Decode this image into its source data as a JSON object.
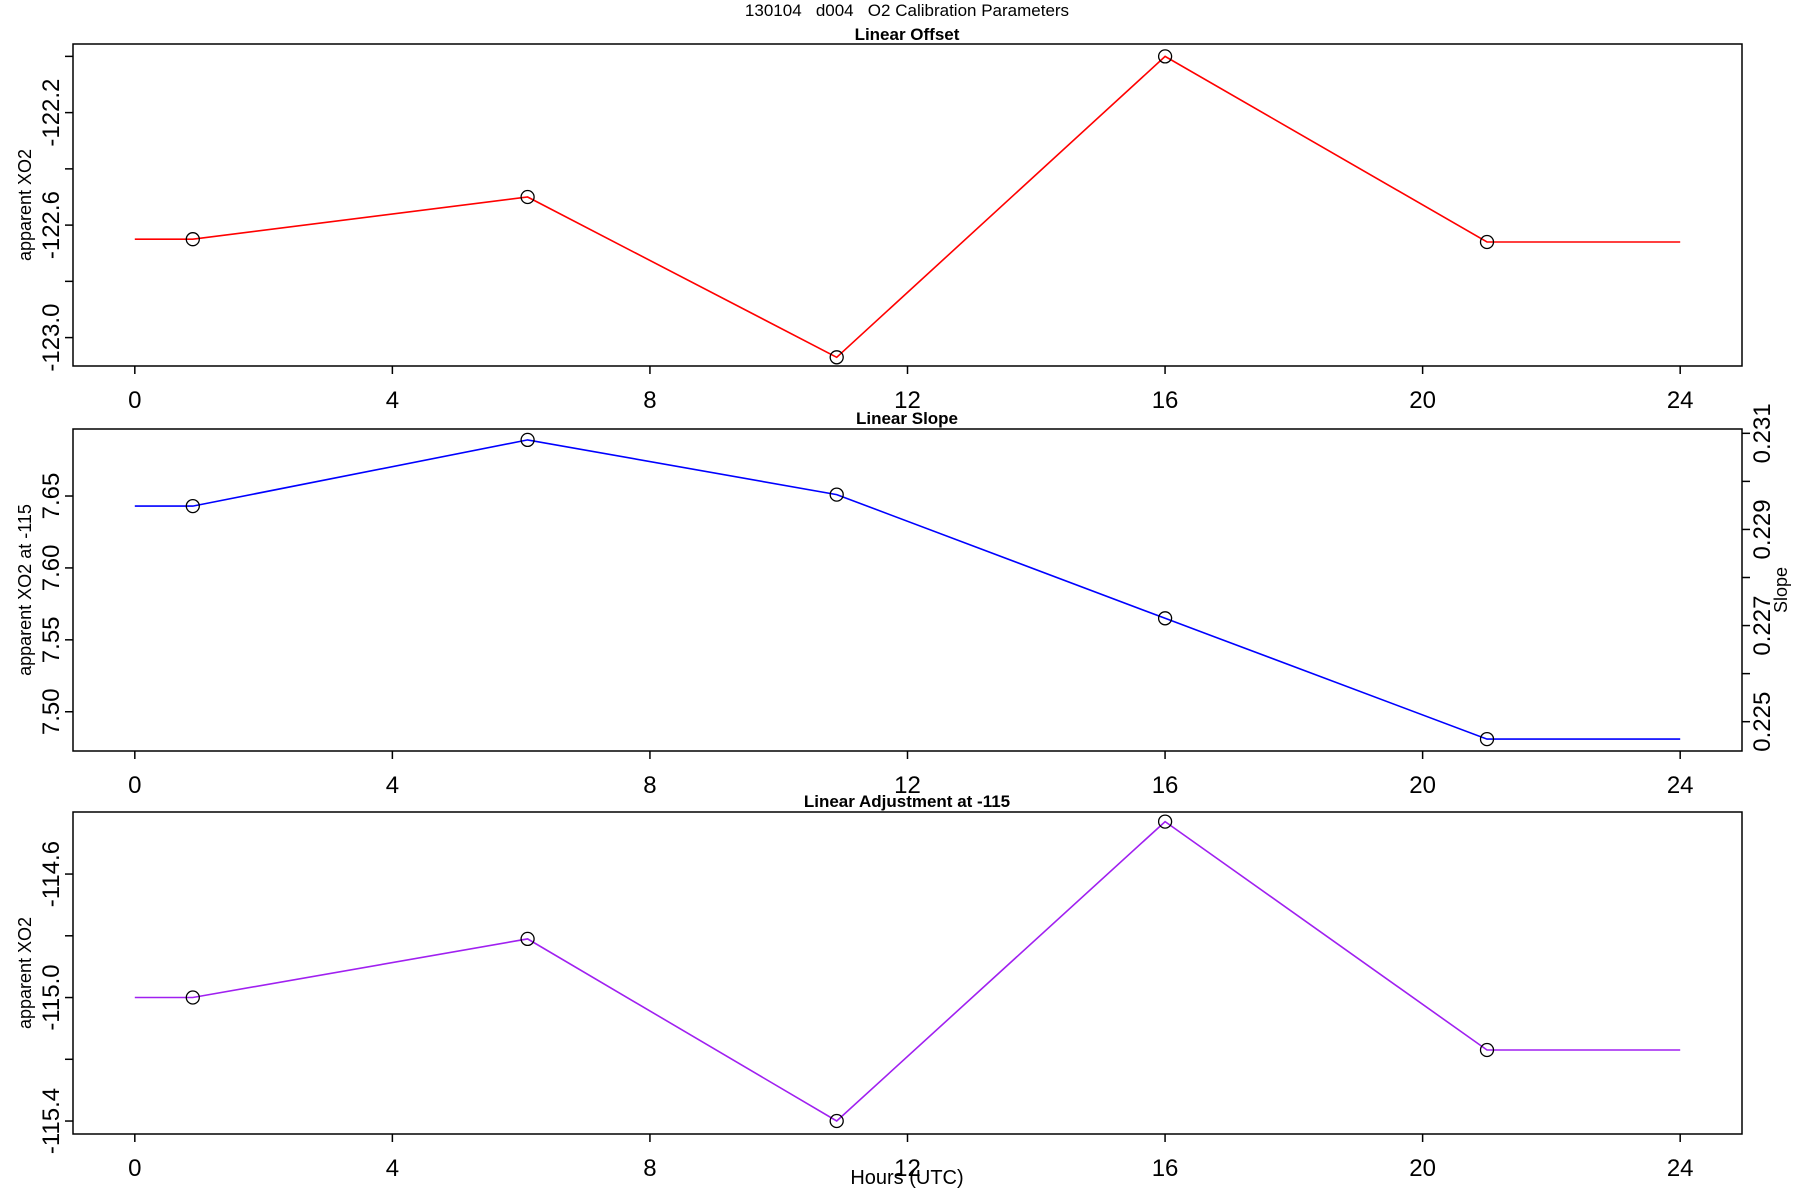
{
  "header": {
    "title": "130104   d004   O2 Calibration Parameters"
  },
  "x_axis": {
    "label": "Hours (UTC)",
    "ticks": [
      0,
      4,
      8,
      12,
      16,
      20,
      24
    ],
    "range": [
      0,
      24
    ]
  },
  "chart_data": [
    {
      "type": "line",
      "title": "Linear Offset",
      "ylabel": "apparent XO2",
      "color": "#ff0000",
      "marker": "open-circle",
      "x": [
        0.9,
        6.1,
        10.9,
        16.0,
        21.0
      ],
      "y": [
        -122.65,
        -122.5,
        -123.07,
        -122.0,
        -122.66
      ],
      "line_extend_x": [
        0,
        24
      ],
      "xlim": [
        -0.96,
        24.96
      ],
      "ylim": [
        -123.101,
        -121.956
      ],
      "grid": false,
      "yticks": [
        {
          "v": -123.0,
          "label": "-123.0"
        },
        {
          "v": -122.8,
          "label": ""
        },
        {
          "v": -122.6,
          "label": "-122.6"
        },
        {
          "v": -122.4,
          "label": ""
        },
        {
          "v": -122.2,
          "label": "-122.2"
        },
        {
          "v": -122.0,
          "label": ""
        }
      ]
    },
    {
      "type": "line",
      "title": "Linear Slope",
      "ylabel": "apparent XO2 at -115",
      "color": "#0000ff",
      "marker": "open-circle",
      "x": [
        0.9,
        6.1,
        10.9,
        16.0,
        21.0
      ],
      "y": [
        7.643,
        7.689,
        7.651,
        7.565,
        7.481
      ],
      "slope_values": [
        0.2295,
        0.2309,
        0.2297,
        0.2271,
        0.2246
      ],
      "line_extend_x": [
        0,
        24
      ],
      "xlim": [
        -0.96,
        24.96
      ],
      "ylim": [
        7.4727,
        7.6966
      ],
      "grid": false,
      "yticks": [
        {
          "v": 7.5,
          "label": "7.50"
        },
        {
          "v": 7.55,
          "label": "7.55"
        },
        {
          "v": 7.6,
          "label": "7.60"
        },
        {
          "v": 7.65,
          "label": "7.65"
        }
      ],
      "right_axis": {
        "label": "Slope",
        "ylim": [
          0.22439,
          0.23109
        ],
        "ticks": [
          {
            "v": 0.225,
            "label": "0.225"
          },
          {
            "v": 0.226,
            "label": ""
          },
          {
            "v": 0.227,
            "label": "0.227"
          },
          {
            "v": 0.228,
            "label": ""
          },
          {
            "v": 0.229,
            "label": "0.229"
          },
          {
            "v": 0.23,
            "label": ""
          },
          {
            "v": 0.231,
            "label": "0.231"
          }
        ]
      }
    },
    {
      "type": "line",
      "title": "Linear Adjustment at -115",
      "ylabel": "apparent XO2",
      "color": "#a020f0",
      "marker": "open-circle",
      "x": [
        0.9,
        6.1,
        10.9,
        16.0,
        21.0
      ],
      "y": [
        -115.0,
        -114.81,
        -115.4,
        -114.43,
        -115.17
      ],
      "line_extend_x": [
        0,
        24
      ],
      "xlim": [
        -0.96,
        24.96
      ],
      "ylim": [
        -115.442,
        -114.399
      ],
      "grid": false,
      "yticks": [
        {
          "v": -115.4,
          "label": "-115.4"
        },
        {
          "v": -115.2,
          "label": ""
        },
        {
          "v": -115.0,
          "label": "-115.0"
        },
        {
          "v": -114.8,
          "label": ""
        },
        {
          "v": -114.6,
          "label": "-114.6"
        }
      ]
    }
  ]
}
